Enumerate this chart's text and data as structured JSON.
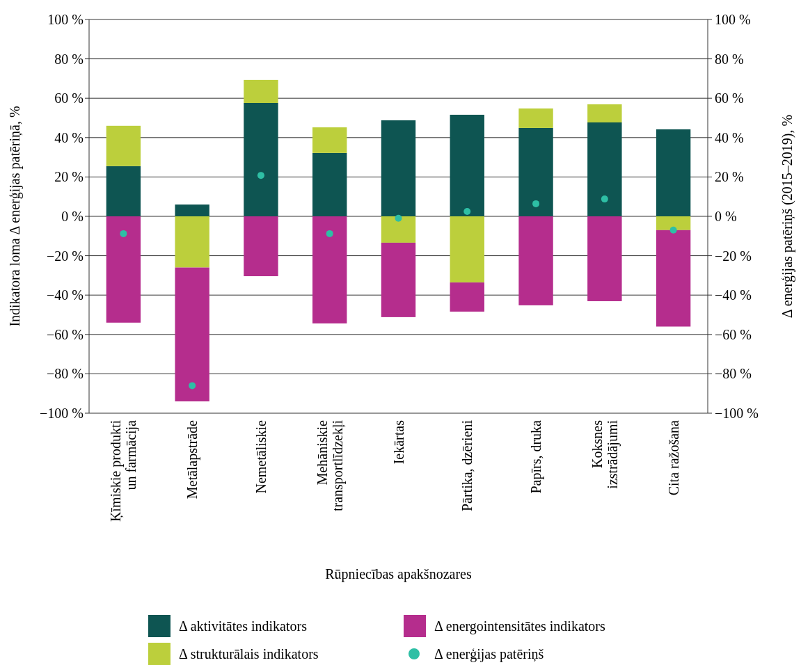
{
  "chart_data": {
    "type": "bar",
    "stacked": true,
    "xlabel": "Rūpniecības apakšnozares",
    "ylabel": "Indikatora loma Δ enerģijas patēriņā, %",
    "y2label": "Δ enerģijas patēriņš (2015–2019), %",
    "categories": [
      "Ķīmiskie produkti un farmācija",
      "Metālapstrāde",
      "Nemetāliskie",
      "Mehāniskie transportlīdzekļi",
      "Iekārtas",
      "Pārtika, dzērieni",
      "Papīrs, druka",
      "Koksnes izstrādājumi",
      "Cita ražošana"
    ],
    "series": [
      {
        "name": "Δ aktivitātes indikators",
        "color": "#0e5552",
        "values": [
          25.5,
          6,
          57.6,
          32.2,
          48.8,
          51.6,
          44.9,
          47.7,
          44.2
        ]
      },
      {
        "name": "Δ strukturālais indikators",
        "color": "#bccf3c",
        "values": [
          20.5,
          -26,
          11.7,
          13,
          -13.4,
          -33.6,
          9.9,
          9.2,
          -7
        ]
      },
      {
        "name": "Δ energointensitātes indikators",
        "color": "#b52d8d",
        "values": [
          -54,
          -68,
          -30.4,
          -54.4,
          -37.8,
          -14.8,
          -45.2,
          -43.1,
          -49
        ]
      },
      {
        "name": "Δ enerģijas patēriņš",
        "type": "scatter",
        "axis": "y2",
        "color": "#2ebfa5",
        "values": [
          -8.8,
          -86,
          20.8,
          -8.8,
          -1,
          2.5,
          6.4,
          8.8,
          -7
        ]
      }
    ],
    "ylim": [
      -100,
      100
    ],
    "yticks": [
      {
        "value": -100,
        "label": "−100 %"
      },
      {
        "value": -80,
        "label": "−80 %"
      },
      {
        "value": -60,
        "label": "−60 %"
      },
      {
        "value": -40,
        "label": "−40 %"
      },
      {
        "value": -20,
        "label": "−20 %"
      },
      {
        "value": 0,
        "label": "0 %"
      },
      {
        "value": 20,
        "label": "20 %"
      },
      {
        "value": 40,
        "label": "40 %"
      },
      {
        "value": 60,
        "label": "60 %"
      },
      {
        "value": 80,
        "label": "80 %"
      },
      {
        "value": 100,
        "label": "100 %"
      }
    ],
    "y2lim": [
      -100,
      100
    ],
    "y2ticks": [
      {
        "value": -100,
        "label": "−100 %"
      },
      {
        "value": -80,
        "label": "−80 %"
      },
      {
        "value": -60,
        "label": "−60 %"
      },
      {
        "value": -40,
        "label": "−40 %"
      },
      {
        "value": -20,
        "label": "−20 %"
      },
      {
        "value": 0,
        "label": "0 %"
      },
      {
        "value": 20,
        "label": "20 %"
      },
      {
        "value": 40,
        "label": "40 %"
      },
      {
        "value": 60,
        "label": "60 %"
      },
      {
        "value": 80,
        "label": "80 %"
      },
      {
        "value": 100,
        "label": "100 %"
      }
    ],
    "grid": "y",
    "legend": "bottom",
    "marker": "circle"
  }
}
